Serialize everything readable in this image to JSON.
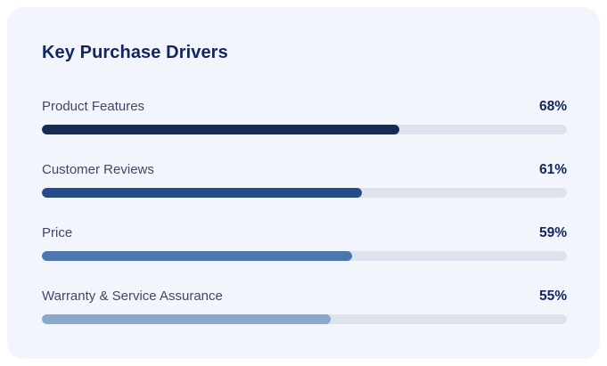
{
  "card": {
    "title": "Key Purchase Drivers"
  },
  "chart_data": {
    "type": "bar",
    "orientation": "horizontal",
    "title": "Key Purchase Drivers",
    "categories": [
      "Product Features",
      "Customer Reviews",
      "Price",
      "Warranty & Service Assurance"
    ],
    "values": [
      68,
      61,
      59,
      55
    ],
    "value_labels": [
      "68%",
      "61%",
      "59%",
      "55%"
    ],
    "xlim": [
      0,
      100
    ],
    "grid": false,
    "legend": false,
    "bar_colors": [
      "#1b2a55",
      "#254c8a",
      "#4d76ae",
      "#8aa7cd"
    ],
    "track_color": "#dce3ef"
  },
  "colors": {
    "page_bg": "#ffffff",
    "card_bg": "#f2f6fc",
    "title_text": "#12265e",
    "label_text": "#3c4a64",
    "value_text": "#12265e"
  }
}
